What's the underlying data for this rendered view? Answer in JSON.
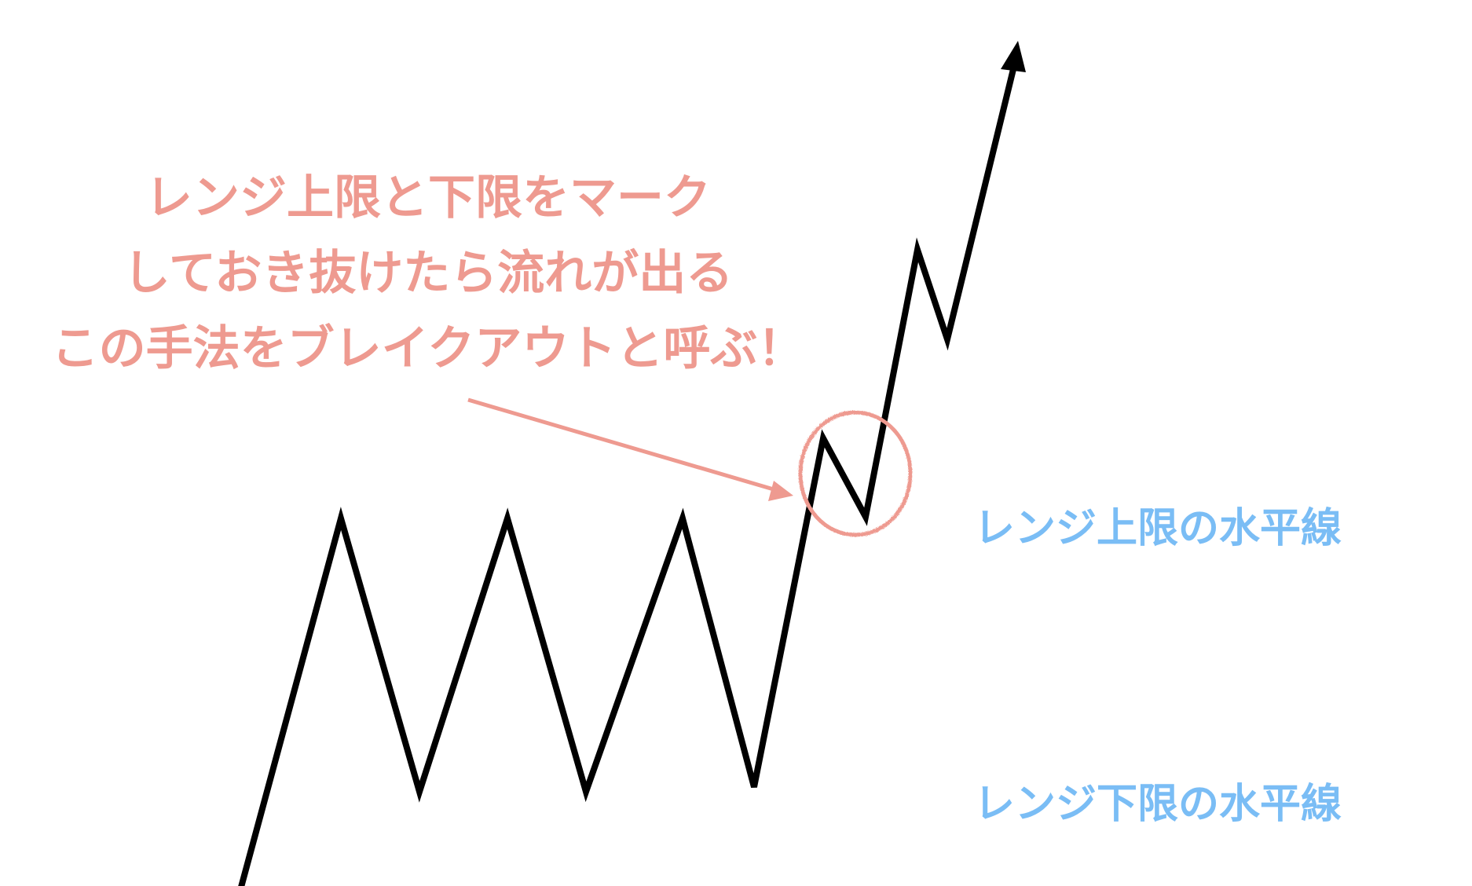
{
  "caption": {
    "lines": [
      "レンジ上限と下限をマーク",
      "しておき抜けたら流れが出る",
      "この手法をブレイクアウトと呼ぶ！"
    ]
  },
  "labels": {
    "upper": "レンジ上限の水平線",
    "lower": "レンジ下限の水平線"
  },
  "colors": {
    "price_line": "#000000",
    "range_lines": "#7ABDF5",
    "annotation": "#EE9A90"
  }
}
